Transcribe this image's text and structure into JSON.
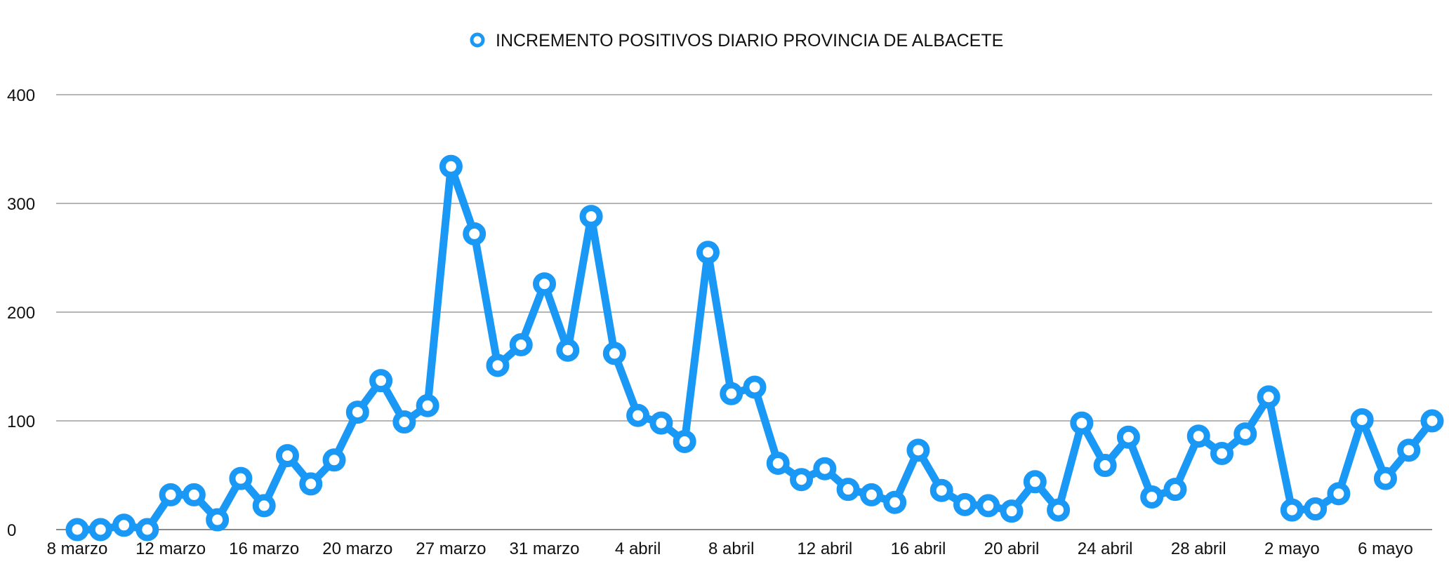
{
  "chart_data": {
    "type": "line",
    "title": "",
    "xlabel": "",
    "ylabel": "",
    "legend": {
      "position": "top-center",
      "entries": [
        "INCREMENTO POSITIVOS DIARIO PROVINCIA DE ALBACETE"
      ]
    },
    "grid": true,
    "ylim": [
      0,
      400
    ],
    "y_ticks": [
      0,
      100,
      200,
      300,
      400
    ],
    "x_tick_labels": [
      "8 marzo",
      "12 marzo",
      "16 marzo",
      "20 marzo",
      "27 marzo",
      "31 marzo",
      "4 abril",
      "8 abril",
      "12 abril",
      "16 abril",
      "20 abril",
      "24 abril",
      "28 abril",
      "2 mayo",
      "6 mayo"
    ],
    "colors": {
      "series": "#1a98f5",
      "marker_fill": "#ffffff"
    },
    "series": [
      {
        "name": "INCREMENTO POSITIVOS DIARIO PROVINCIA DE ALBACETE",
        "values": [
          0,
          0,
          4,
          0,
          32,
          32,
          9,
          47,
          22,
          68,
          42,
          64,
          108,
          137,
          99,
          114,
          334,
          272,
          151,
          170,
          226,
          165,
          288,
          162,
          105,
          98,
          81,
          255,
          125,
          131,
          61,
          46,
          56,
          37,
          32,
          25,
          73,
          36,
          23,
          22,
          17,
          44,
          18,
          98,
          59,
          85,
          30,
          37,
          86,
          70,
          88,
          122,
          18,
          19,
          33,
          101,
          47,
          73,
          100
        ]
      }
    ]
  }
}
